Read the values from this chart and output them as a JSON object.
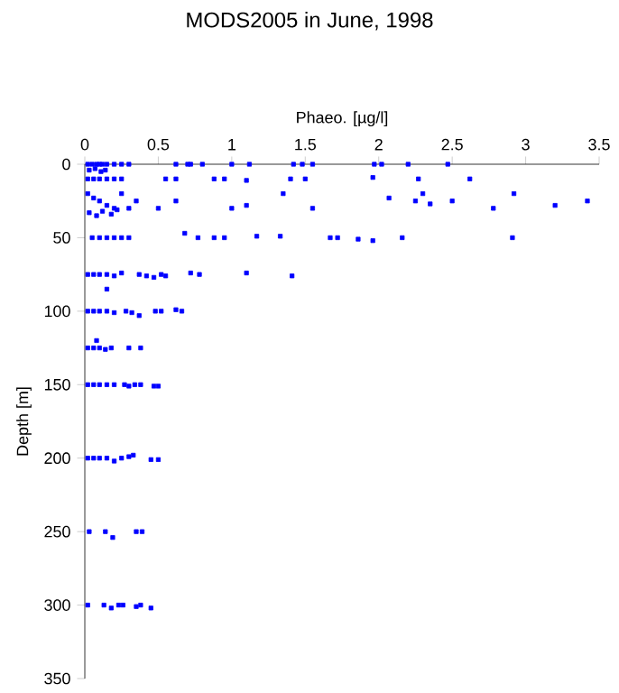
{
  "chart_data": {
    "type": "scatter",
    "title": "MODS2005 in June, 1998",
    "xlabel": "Phaeo. [µg/l]",
    "ylabel": "Depth [m]",
    "xlim": [
      0,
      3.5
    ],
    "xticks": [
      0,
      0.5,
      1,
      1.5,
      2,
      2.5,
      3,
      3.5
    ],
    "ylim": [
      350,
      0
    ],
    "yticks": [
      0,
      50,
      100,
      150,
      200,
      250,
      300,
      350
    ],
    "marker": "square",
    "grid": false,
    "series": [
      {
        "color": "#0000ff",
        "x": [
          0.02,
          0.05,
          0.08,
          0.1,
          0.12,
          0.15,
          0.2,
          0.25,
          0.3,
          0.62,
          0.7,
          0.72,
          0.8,
          1.0,
          1.12,
          1.42,
          1.48,
          1.55,
          1.97,
          2.02,
          2.2,
          2.47,
          0.03,
          0.07,
          0.11,
          0.14,
          0.02,
          0.06,
          0.1,
          0.15,
          0.2,
          0.25,
          0.55,
          0.62,
          0.88,
          0.95,
          1.1,
          1.4,
          1.5,
          1.96,
          2.27,
          2.62,
          0.02,
          0.06,
          0.1,
          0.15,
          0.2,
          0.25,
          0.3,
          0.35,
          0.5,
          0.62,
          1.0,
          1.1,
          1.35,
          1.55,
          2.07,
          2.25,
          2.3,
          2.35,
          2.5,
          2.78,
          2.92,
          3.2,
          3.42,
          0.03,
          0.08,
          0.12,
          0.18,
          0.22,
          0.05,
          0.1,
          0.15,
          0.2,
          0.25,
          0.3,
          0.68,
          0.77,
          0.88,
          0.95,
          1.17,
          1.33,
          1.67,
          1.72,
          1.86,
          1.96,
          2.16,
          2.91,
          0.02,
          0.06,
          0.1,
          0.15,
          0.2,
          0.25,
          0.37,
          0.42,
          0.47,
          0.52,
          0.55,
          0.72,
          0.78,
          1.1,
          1.41,
          0.15,
          0.02,
          0.06,
          0.1,
          0.15,
          0.2,
          0.28,
          0.32,
          0.37,
          0.48,
          0.52,
          0.62,
          0.66,
          0.08,
          0.02,
          0.06,
          0.1,
          0.14,
          0.18,
          0.3,
          0.38,
          0.02,
          0.06,
          0.1,
          0.15,
          0.2,
          0.27,
          0.3,
          0.34,
          0.38,
          0.47,
          0.5,
          0.02,
          0.06,
          0.1,
          0.15,
          0.2,
          0.25,
          0.3,
          0.33,
          0.45,
          0.5,
          0.03,
          0.14,
          0.19,
          0.35,
          0.39,
          0.02,
          0.13,
          0.18,
          0.23,
          0.26,
          0.35,
          0.38,
          0.45
        ],
        "values": [
          0,
          0,
          0,
          0,
          0,
          0,
          0,
          0,
          0,
          0,
          0,
          0,
          0,
          0,
          0,
          0,
          0,
          0,
          0,
          0,
          0,
          0,
          4,
          3,
          5,
          4,
          10,
          10,
          10,
          10,
          10,
          10,
          10,
          10,
          10,
          10,
          11,
          10,
          10,
          9,
          10,
          10,
          20,
          23,
          25,
          28,
          30,
          20,
          30,
          25,
          30,
          25,
          30,
          28,
          20,
          30,
          23,
          25,
          20,
          27,
          25,
          30,
          20,
          28,
          25,
          33,
          35,
          32,
          34,
          31,
          50,
          50,
          50,
          50,
          50,
          50,
          47,
          50,
          50,
          50,
          49,
          49,
          50,
          50,
          51,
          52,
          50,
          50,
          75,
          75,
          75,
          75,
          76,
          74,
          75,
          76,
          77,
          75,
          76,
          74,
          75,
          74,
          76,
          85,
          100,
          100,
          100,
          100,
          101,
          100,
          101,
          103,
          100,
          100,
          99,
          100,
          120,
          125,
          125,
          125,
          126,
          125,
          125,
          125,
          150,
          150,
          150,
          150,
          150,
          150,
          151,
          150,
          150,
          151,
          151,
          200,
          200,
          200,
          200,
          202,
          200,
          199,
          198,
          201,
          201,
          250,
          250,
          254,
          250,
          250,
          300,
          300,
          302,
          300,
          300,
          301,
          300,
          302
        ]
      }
    ]
  }
}
